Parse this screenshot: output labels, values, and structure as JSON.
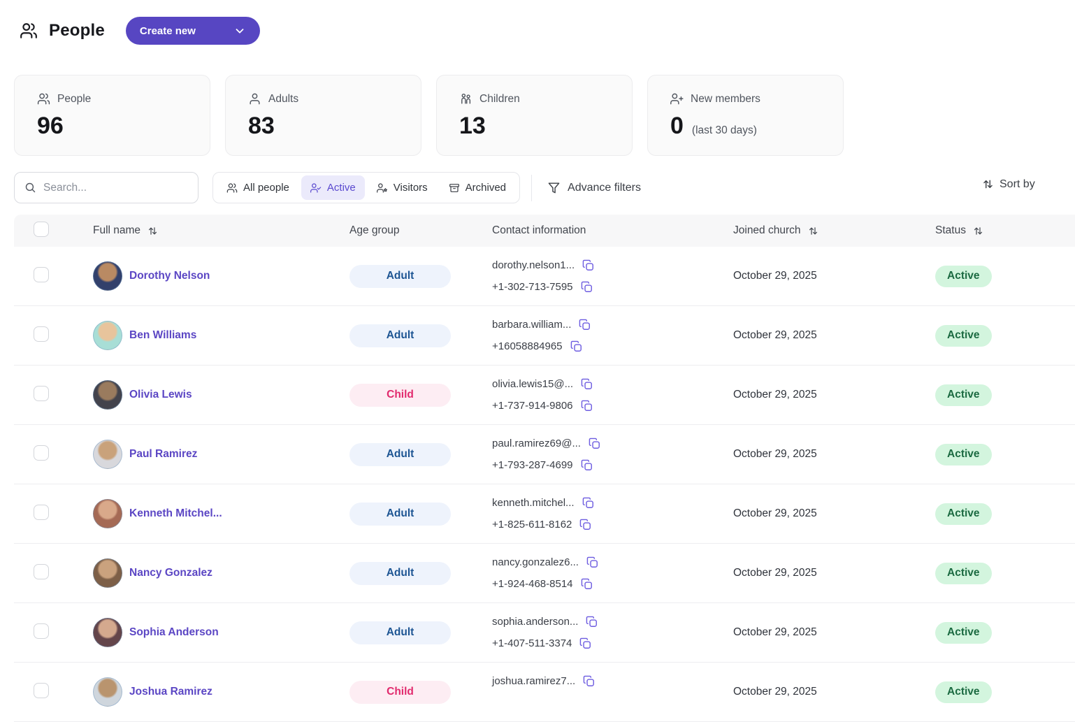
{
  "header": {
    "title": "People",
    "create_button_label": "Create new"
  },
  "stats": [
    {
      "icon": "people-icon",
      "label": "People",
      "value": "96",
      "suffix": ""
    },
    {
      "icon": "person-icon",
      "label": "Adults",
      "value": "83",
      "suffix": ""
    },
    {
      "icon": "children-icon",
      "label": "Children",
      "value": "13",
      "suffix": ""
    },
    {
      "icon": "person-plus-icon",
      "label": "New members",
      "value": "0",
      "suffix": "(last 30 days)"
    }
  ],
  "toolbar": {
    "search_placeholder": "Search...",
    "tabs": [
      {
        "icon": "people-icon",
        "label": "All people",
        "active": false
      },
      {
        "icon": "person-check-icon",
        "label": "Active",
        "active": true
      },
      {
        "icon": "person-star-icon",
        "label": "Visitors",
        "active": false
      },
      {
        "icon": "archive-icon",
        "label": "Archived",
        "active": false
      }
    ],
    "advanced_filters_label": "Advance filters",
    "sort_label": "Sort by"
  },
  "table": {
    "columns": [
      {
        "label": "Full name",
        "sortable": true
      },
      {
        "label": "Age group",
        "sortable": false
      },
      {
        "label": "Contact information",
        "sortable": false
      },
      {
        "label": "Joined church",
        "sortable": true
      },
      {
        "label": "Status",
        "sortable": true
      }
    ],
    "rows": [
      {
        "name": "Dorothy Nelson",
        "age_group": "Adult",
        "email": "dorothy.nelson1...",
        "phone": "+1-302-713-7595",
        "joined": "October 29, 2025",
        "status": "Active",
        "avatar_colors": [
          "#b98a63",
          "#32406b"
        ]
      },
      {
        "name": "Ben Williams",
        "age_group": "Adult",
        "email": "barbara.william...",
        "phone": "+16058884965",
        "joined": "October 29, 2025",
        "status": "Active",
        "avatar_colors": [
          "#e8c49c",
          "#a8ded6"
        ]
      },
      {
        "name": "Olivia Lewis",
        "age_group": "Child",
        "email": "olivia.lewis15@...",
        "phone": "+1-737-914-9806",
        "joined": "October 29, 2025",
        "status": "Active",
        "avatar_colors": [
          "#9a7b5e",
          "#43434c"
        ]
      },
      {
        "name": "Paul Ramirez",
        "age_group": "Adult",
        "email": "paul.ramirez69@...",
        "phone": "+1-793-287-4699",
        "joined": "October 29, 2025",
        "status": "Active",
        "avatar_colors": [
          "#c9a27b",
          "#d8d8dc"
        ]
      },
      {
        "name": "Kenneth Mitchel...",
        "age_group": "Adult",
        "email": "kenneth.mitchel...",
        "phone": "+1-825-611-8162",
        "joined": "October 29, 2025",
        "status": "Active",
        "avatar_colors": [
          "#d9a98a",
          "#a56a55"
        ]
      },
      {
        "name": "Nancy Gonzalez",
        "age_group": "Adult",
        "email": "nancy.gonzalez6...",
        "phone": "+1-924-468-8514",
        "joined": "October 29, 2025",
        "status": "Active",
        "avatar_colors": [
          "#caa27e",
          "#7d5f47"
        ]
      },
      {
        "name": "Sophia Anderson",
        "age_group": "Adult",
        "email": "sophia.anderson...",
        "phone": "+1-407-511-3374",
        "joined": "October 29, 2025",
        "status": "Active",
        "avatar_colors": [
          "#d4a98e",
          "#64454a"
        ]
      },
      {
        "name": "Joshua Ramirez",
        "age_group": "Child",
        "email": "joshua.ramirez7...",
        "phone": "",
        "joined": "October 29, 2025",
        "status": "Active",
        "avatar_colors": [
          "#b9946e",
          "#cfd6dd"
        ]
      }
    ]
  },
  "colors": {
    "primary": "#5746c2",
    "active_tab_bg": "#ebeafb",
    "name_link": "#5b46c4",
    "adult_badge_bg": "#eef3fc",
    "adult_badge_text": "#1d5593",
    "child_badge_bg": "#fdedf3",
    "child_badge_text": "#e12a6d",
    "status_active_bg": "#d3f5de",
    "status_active_text": "#1b6a41",
    "copy_icon": "#6d5ce0"
  }
}
